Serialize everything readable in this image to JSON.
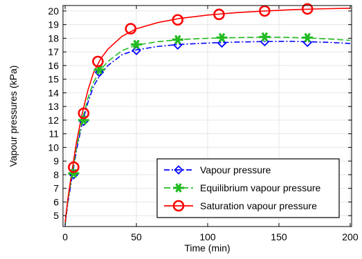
{
  "chart_data": {
    "type": "line",
    "xlabel": "Time (min)",
    "ylabel": "Vapour pressures (kPa)",
    "xlim": [
      -1.5,
      201
    ],
    "ylim": [
      4.2,
      20.4
    ],
    "xticks": [
      0,
      50,
      100,
      150,
      200
    ],
    "yticks": [
      5,
      6,
      7,
      8,
      9,
      10,
      11,
      12,
      13,
      14,
      15,
      16,
      17,
      18,
      19,
      20
    ],
    "grid": true,
    "legend_position": "bottom-right",
    "series": [
      {
        "name": "Vapour pressure",
        "color": "#0000ff",
        "line_style": "dash-dot",
        "marker": "diamond",
        "curve": [
          [
            0,
            4.3
          ],
          [
            2,
            6.0
          ],
          [
            5,
            7.9
          ],
          [
            8,
            9.8
          ],
          [
            12,
            11.8
          ],
          [
            16,
            13.3
          ],
          [
            20,
            14.5
          ],
          [
            25,
            15.4
          ],
          [
            30,
            16.0
          ],
          [
            40,
            16.8
          ],
          [
            50,
            17.15
          ],
          [
            65,
            17.4
          ],
          [
            80,
            17.55
          ],
          [
            100,
            17.65
          ],
          [
            120,
            17.72
          ],
          [
            140,
            17.76
          ],
          [
            155,
            17.78
          ],
          [
            170,
            17.75
          ],
          [
            185,
            17.7
          ],
          [
            200,
            17.62
          ]
        ],
        "markers": [
          [
            6,
            8.0
          ],
          [
            13,
            11.9
          ],
          [
            24,
            15.5
          ],
          [
            50,
            17.1
          ],
          [
            79,
            17.5
          ],
          [
            110,
            17.65
          ],
          [
            140,
            17.75
          ],
          [
            170,
            17.7
          ]
        ]
      },
      {
        "name": "Equilibrium vapour pressure",
        "color": "#22bb22",
        "line_style": "dashed",
        "marker": "asterisk",
        "curve": [
          [
            0,
            4.4
          ],
          [
            2,
            6.1
          ],
          [
            5,
            8.1
          ],
          [
            8,
            10.0
          ],
          [
            12,
            12.0
          ],
          [
            16,
            13.6
          ],
          [
            20,
            14.8
          ],
          [
            25,
            15.7
          ],
          [
            30,
            16.3
          ],
          [
            40,
            17.1
          ],
          [
            50,
            17.5
          ],
          [
            65,
            17.75
          ],
          [
            80,
            17.9
          ],
          [
            100,
            18.0
          ],
          [
            120,
            18.05
          ],
          [
            140,
            18.08
          ],
          [
            155,
            18.07
          ],
          [
            170,
            18.02
          ],
          [
            185,
            17.95
          ],
          [
            200,
            17.85
          ]
        ],
        "markers": [
          [
            6,
            8.1
          ],
          [
            13,
            12.0
          ],
          [
            24,
            15.7
          ],
          [
            50,
            17.55
          ],
          [
            79,
            17.9
          ],
          [
            110,
            18.05
          ],
          [
            140,
            18.1
          ],
          [
            170,
            18.05
          ]
        ]
      },
      {
        "name": "Saturation vapour pressure",
        "color": "#ff0000",
        "line_style": "solid",
        "marker": "circle",
        "curve": [
          [
            0,
            4.5
          ],
          [
            2,
            6.3
          ],
          [
            5,
            8.4
          ],
          [
            8,
            10.4
          ],
          [
            12,
            12.5
          ],
          [
            16,
            14.2
          ],
          [
            20,
            15.5
          ],
          [
            25,
            16.5
          ],
          [
            30,
            17.2
          ],
          [
            40,
            18.15
          ],
          [
            50,
            18.7
          ],
          [
            65,
            19.15
          ],
          [
            80,
            19.45
          ],
          [
            100,
            19.7
          ],
          [
            120,
            19.88
          ],
          [
            140,
            20.0
          ],
          [
            160,
            20.1
          ],
          [
            180,
            20.16
          ],
          [
            200,
            20.2
          ]
        ],
        "markers": [
          [
            6,
            8.55
          ],
          [
            13,
            12.5
          ],
          [
            23,
            16.3
          ],
          [
            46,
            18.7
          ],
          [
            79,
            19.35
          ],
          [
            108,
            19.75
          ],
          [
            140,
            20.0
          ],
          [
            170,
            20.15
          ]
        ]
      }
    ]
  }
}
